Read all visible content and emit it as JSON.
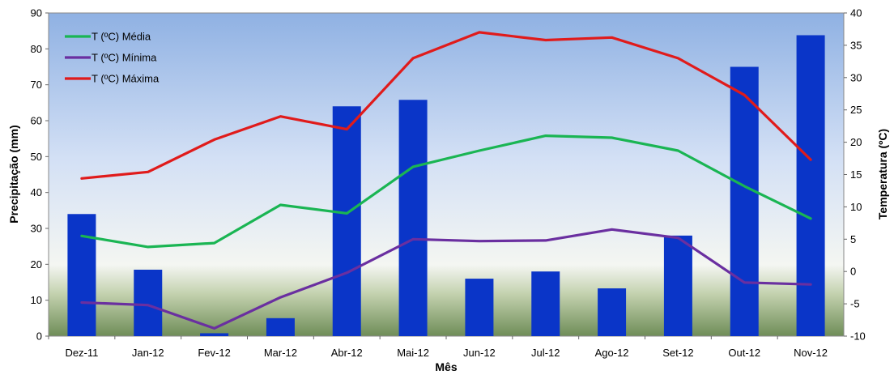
{
  "chart_data": {
    "type": "bar+line",
    "categories": [
      "Dez-11",
      "Jan-12",
      "Fev-12",
      "Mar-12",
      "Abr-12",
      "Mai-12",
      "Jun-12",
      "Jul-12",
      "Ago-12",
      "Set-12",
      "Out-12",
      "Nov-12"
    ],
    "bar_series": {
      "name": "",
      "axis": "left",
      "color": "#0a35c8",
      "values": [
        34,
        18.5,
        0.8,
        5,
        64,
        65.8,
        16,
        18,
        13.3,
        28,
        75,
        83.8
      ]
    },
    "line_series": [
      {
        "name": "T (ºC) Média",
        "color": "#1ab553",
        "values": [
          5.5,
          3.8,
          4.4,
          10.3,
          9.0,
          16.2,
          18.7,
          21.0,
          20.7,
          18.7,
          13.2,
          8.2
        ]
      },
      {
        "name": "T (ºC) Mínima",
        "color": "#6a2fa0",
        "values": [
          -4.8,
          -5.2,
          -8.8,
          -4.0,
          -0.2,
          5.0,
          4.7,
          4.8,
          6.5,
          5.2,
          -1.7,
          -2.0
        ]
      },
      {
        "name": "T (ºC) Máxima",
        "color": "#e01b1b",
        "values": [
          14.4,
          15.4,
          20.4,
          24.0,
          22.0,
          33.0,
          37.0,
          35.8,
          36.2,
          33.0,
          27.3,
          17.3
        ]
      }
    ],
    "xlabel": "Mês",
    "ylabel": "Precipitação (mm)",
    "y2label": "Temperatura (ºC)",
    "ylim": [
      0,
      90
    ],
    "y2lim": [
      -10,
      40
    ],
    "yticks": [
      "0",
      "10",
      "20",
      "30",
      "40",
      "50",
      "60",
      "70",
      "80",
      "90"
    ],
    "y2ticks": [
      "-10",
      "-5",
      "0",
      "5",
      "10",
      "15",
      "20",
      "25",
      "30",
      "35",
      "40"
    ],
    "legend_position": "top-left",
    "grid": false
  }
}
